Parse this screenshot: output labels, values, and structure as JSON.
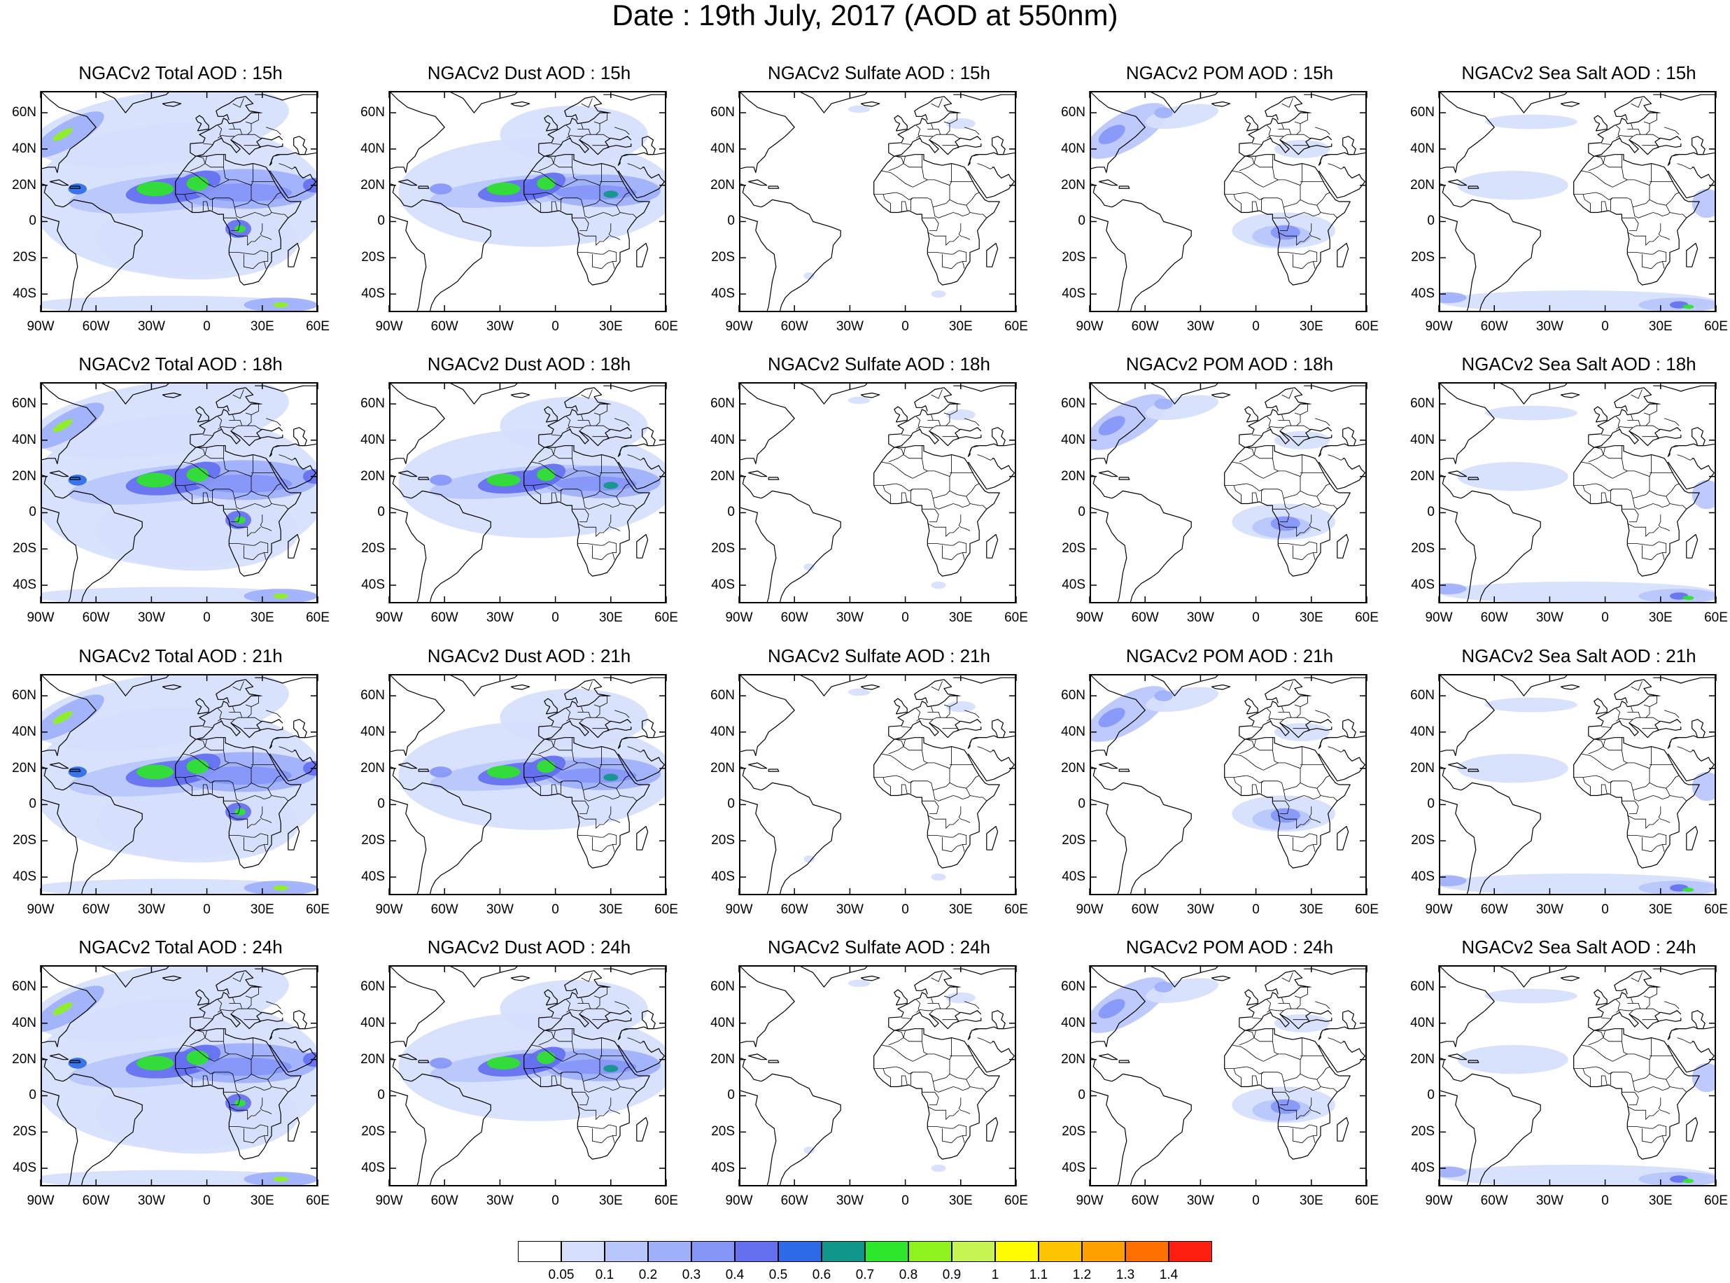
{
  "title": "Date : 19th July, 2017 (AOD at 550nm)",
  "lat_labels": [
    "60N",
    "40N",
    "20N",
    "0",
    "20S",
    "40S"
  ],
  "lon_labels": [
    "90W",
    "60W",
    "30W",
    "0",
    "30E",
    "60E"
  ],
  "columns": [
    {
      "species": "total",
      "pattern": "total"
    },
    {
      "species": "dust",
      "pattern": "dust"
    },
    {
      "species": "sulfate",
      "pattern": "sulfate"
    },
    {
      "species": "pom",
      "pattern": "pom"
    },
    {
      "species": "seasalt",
      "pattern": "seasalt"
    }
  ],
  "rows": [
    {
      "hour": "15h",
      "titles": [
        "NGACv2 Total AOD : 15h",
        "NGACv2 Dust AOD : 15h",
        "NGACv2 Sulfate AOD : 15h",
        "NGACv2 POM AOD : 15h",
        "NGACv2 Sea Salt AOD : 15h"
      ]
    },
    {
      "hour": "18h",
      "titles": [
        "NGACv2 Total AOD : 18h",
        "NGACv2 Dust AOD : 18h",
        "NGACv2 Sulfate AOD : 18h",
        "NGACv2 POM AOD : 18h",
        "NGACv2 Sea Salt AOD : 18h"
      ]
    },
    {
      "hour": "21h",
      "titles": [
        "NGACv2 Total AOD : 21h",
        "NGACv2 Dust AOD : 21h",
        "NGACv2 Sulfate AOD : 21h",
        "NGACv2 POM AOD : 21h",
        "NGACv2 Sea Salt AOD : 21h"
      ]
    },
    {
      "hour": "24h",
      "titles": [
        "NGACv2 Total AOD : 24h",
        "NGACv2 Dust AOD : 24h",
        "NGACv2 Sulfate AOD : 24h",
        "NGACv2 POM AOD : 24h",
        "NGACv2 Sea Salt  AOD : 24h"
      ]
    }
  ],
  "colorbar": {
    "labels": [
      "0.05",
      "0.1",
      "0.2",
      "0.3",
      "0.4",
      "0.5",
      "0.6",
      "0.7",
      "0.8",
      "0.9",
      "1",
      "1.1",
      "1.2",
      "1.3",
      "1.4"
    ],
    "colors": [
      "#ffffff",
      "#d6e0fd",
      "#b9c6fb",
      "#9fb0fa",
      "#8696f7",
      "#6470f0",
      "#2c6ae8",
      "#11968c",
      "#2ee62b",
      "#8ef21c",
      "#c6f553",
      "#fffb00",
      "#ffc400",
      "#ffa000",
      "#ff7000",
      "#ff1f10"
    ]
  }
}
